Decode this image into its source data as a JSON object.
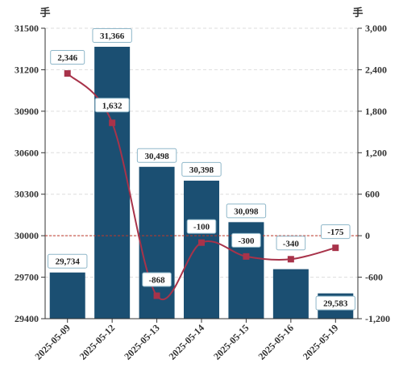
{
  "chart_data": {
    "type": "bar",
    "categories": [
      "2025-05-09",
      "2025-05-12",
      "2025-05-13",
      "2025-05-14",
      "2025-05-15",
      "2025-05-16",
      "2025-05-19"
    ],
    "series": [
      {
        "type": "bar",
        "axis": "left",
        "values": [
          29734,
          31366,
          30498,
          30398,
          30098,
          29758,
          29583
        ],
        "labels": [
          "29,734",
          "31,366",
          "30,498",
          "30,398",
          "30,098",
          "",
          "29,583"
        ],
        "color": "#1b4f72"
      },
      {
        "type": "line",
        "axis": "right",
        "values": [
          2346,
          1632,
          -868,
          -100,
          -300,
          -340,
          -175
        ],
        "labels": [
          "2,346",
          "1,632",
          "-868",
          "-100",
          "-300",
          "-340",
          "-175"
        ],
        "color": "#a8334a"
      }
    ],
    "left_axis": {
      "unit": "手",
      "ylim": [
        29400,
        31500
      ],
      "ticks": [
        "29400",
        "29700",
        "30000",
        "30300",
        "30600",
        "30900",
        "31200",
        "31500"
      ]
    },
    "right_axis": {
      "unit": "手",
      "ylim": [
        -1200,
        3000
      ],
      "ticks": [
        "-1,200",
        "-600",
        "0",
        "600",
        "1,200",
        "1,800",
        "2,400",
        "3,000"
      ]
    },
    "reference_line": {
      "value": 0,
      "axis": "right",
      "color": "#c0392b"
    },
    "grid": true
  }
}
